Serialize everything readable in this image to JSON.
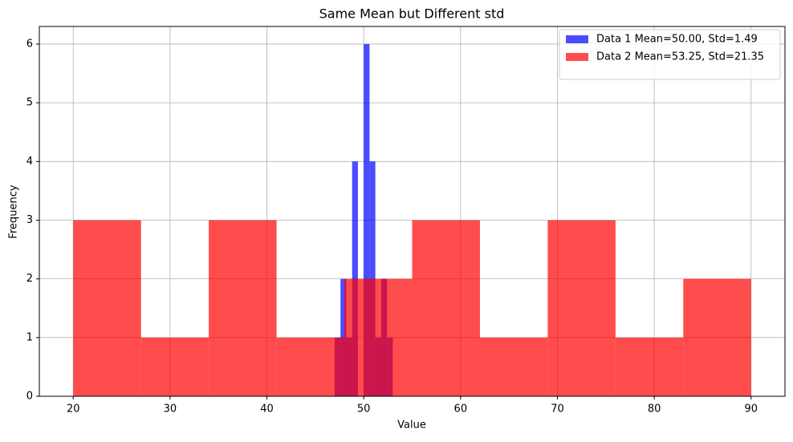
{
  "chart_data": {
    "type": "histogram",
    "title": "Same Mean but Different std",
    "x_label": "Value",
    "y_label": "Frequency",
    "series": [
      {
        "name": "Data 1 Mean=50.00, Std=1.49",
        "color": "#0000ff",
        "bins": [
          47,
          47.6,
          48.2,
          48.8,
          49.4,
          50,
          50.6,
          51.2,
          51.8,
          52.4,
          53
        ],
        "values": [
          1,
          2,
          1,
          4,
          0,
          6,
          4,
          1,
          2,
          1
        ]
      },
      {
        "name": "Data 2 Mean=53.25, Std=21.35",
        "color": "#ff0000",
        "bins": [
          20,
          27,
          34,
          41,
          48,
          55,
          62,
          69,
          76,
          83,
          90
        ],
        "values": [
          3,
          1,
          3,
          1,
          2,
          3,
          1,
          3,
          1,
          2
        ]
      }
    ],
    "xlim": [
      16.5,
      93.5
    ],
    "xticks": [
      20,
      30,
      40,
      50,
      60,
      70,
      80,
      90
    ],
    "ylim": [
      0,
      6.3
    ],
    "yticks": [
      0,
      1,
      2,
      3,
      4,
      5,
      6
    ],
    "grid": true,
    "legend": "upper right"
  }
}
